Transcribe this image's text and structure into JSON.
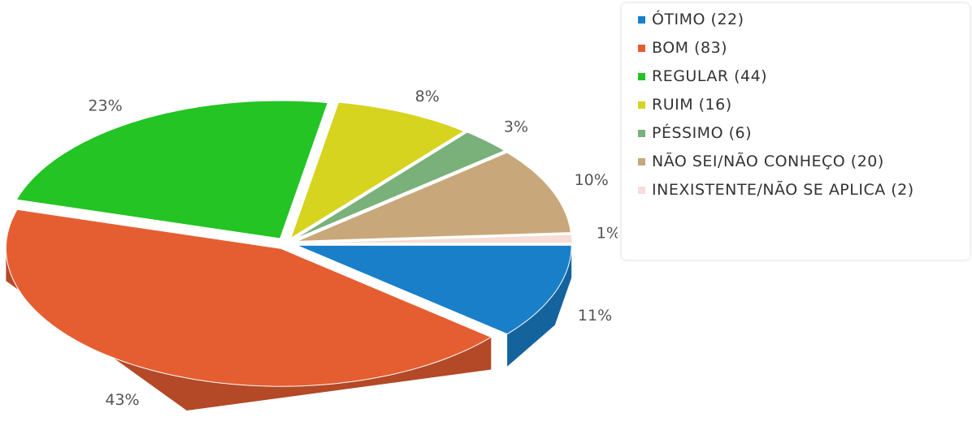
{
  "chart_data": {
    "type": "pie",
    "categories": [
      "ÓTIMO (22)",
      "BOM (83)",
      "REGULAR (44)",
      "RUIM (16)",
      "PÉSSIMO (6)",
      "NÃO SEI/NÃO CONHEÇO (20)",
      "INEXISTENTE/NÃO SE APLICA (2)"
    ],
    "values": [
      11,
      43,
      23,
      8,
      3,
      10,
      1
    ],
    "value_labels": [
      "11%",
      "43%",
      "23%",
      "8%",
      "3%",
      "10%",
      "1%"
    ],
    "colors": [
      "#1a7fc9",
      "#e55e32",
      "#23c424",
      "#d6d41f",
      "#7ab07a",
      "#c8a87a",
      "#f7ddd6"
    ],
    "legend": "right"
  }
}
